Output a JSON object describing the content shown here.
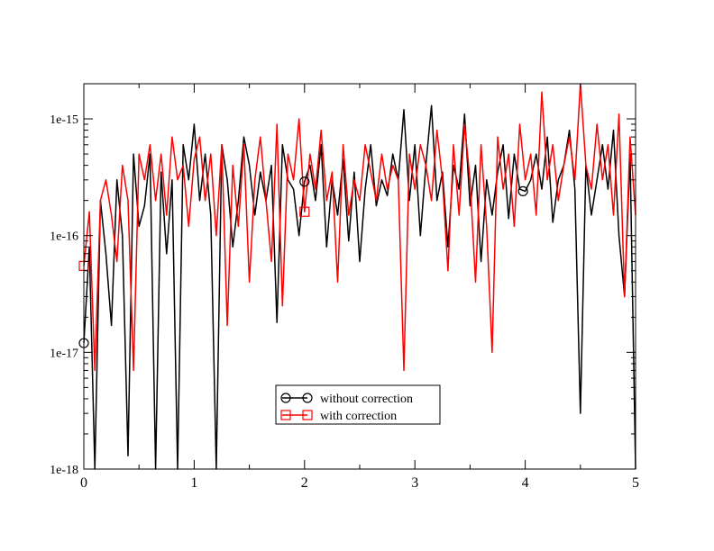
{
  "chart_data": {
    "type": "line",
    "title": "",
    "xlabel": "",
    "ylabel": "",
    "xlim": [
      0,
      5
    ],
    "ylim": [
      1e-18,
      2e-15
    ],
    "yscale": "log",
    "grid": false,
    "legend_position": "center-bottom",
    "x_ticks": [
      0,
      1,
      2,
      3,
      4,
      5
    ],
    "x_tick_labels": [
      "0",
      "1",
      "2",
      "3",
      "4",
      "5"
    ],
    "y_ticks": [
      1e-18,
      1e-17,
      1e-16,
      1e-15
    ],
    "y_tick_labels": [
      "1e-18",
      "1e-17",
      "1e-16",
      "1e-15"
    ],
    "series": [
      {
        "name": "without correction",
        "color": "#000000",
        "marker": "circle",
        "marker_x": [
          0.0,
          2.0,
          3.98
        ],
        "x": [
          0.0,
          0.05,
          0.1,
          0.15,
          0.2,
          0.25,
          0.3,
          0.35,
          0.4,
          0.45,
          0.5,
          0.55,
          0.6,
          0.65,
          0.7,
          0.75,
          0.8,
          0.85,
          0.9,
          0.95,
          1.0,
          1.05,
          1.1,
          1.15,
          1.2,
          1.25,
          1.3,
          1.35,
          1.4,
          1.45,
          1.5,
          1.55,
          1.6,
          1.65,
          1.7,
          1.75,
          1.8,
          1.85,
          1.9,
          1.95,
          2.0,
          2.05,
          2.1,
          2.15,
          2.2,
          2.25,
          2.3,
          2.35,
          2.4,
          2.45,
          2.5,
          2.55,
          2.6,
          2.65,
          2.7,
          2.75,
          2.8,
          2.85,
          2.9,
          2.95,
          3.0,
          3.05,
          3.1,
          3.15,
          3.2,
          3.25,
          3.3,
          3.35,
          3.4,
          3.45,
          3.5,
          3.55,
          3.6,
          3.65,
          3.7,
          3.75,
          3.8,
          3.85,
          3.9,
          3.95,
          4.0,
          4.05,
          4.1,
          4.15,
          4.2,
          4.25,
          4.3,
          4.35,
          4.4,
          4.45,
          4.5,
          4.55,
          4.6,
          4.65,
          4.7,
          4.75,
          4.8,
          4.85,
          4.9,
          4.95,
          5.0
        ],
        "y": [
          1.2e-17,
          8e-17,
          1e-18,
          2e-16,
          7e-17,
          1.7e-17,
          3e-16,
          1e-16,
          1.3e-18,
          5e-16,
          1.2e-16,
          1.8e-16,
          5e-16,
          1e-18,
          3.5e-16,
          7e-17,
          3e-16,
          1e-18,
          6e-16,
          3e-16,
          9e-16,
          2e-16,
          5e-16,
          1.5e-16,
          1e-18,
          6e-16,
          3e-16,
          8e-17,
          2e-16,
          7e-16,
          4e-16,
          1.5e-16,
          3.5e-16,
          2e-16,
          4e-16,
          1.8e-17,
          6e-16,
          3e-16,
          2.5e-16,
          1e-16,
          2.9e-16,
          4e-16,
          2e-16,
          6e-16,
          8e-17,
          3e-16,
          1.5e-16,
          4.5e-16,
          9e-17,
          3.5e-16,
          6e-17,
          2.5e-16,
          6e-16,
          1.8e-16,
          3e-16,
          2.2e-16,
          5e-16,
          3e-16,
          1.2e-15,
          2e-16,
          6e-16,
          1e-16,
          4e-16,
          1.3e-15,
          2e-16,
          3.5e-16,
          8e-17,
          4e-16,
          2.5e-16,
          1.1e-15,
          1.8e-16,
          4e-16,
          6e-17,
          3e-16,
          1.5e-16,
          3.5e-16,
          6e-16,
          1.4e-16,
          5e-16,
          2.5e-16,
          2.4e-16,
          3e-16,
          5e-16,
          2.5e-16,
          7e-16,
          1.3e-16,
          3e-16,
          4e-16,
          8e-16,
          2.5e-16,
          3e-18,
          4e-16,
          1.5e-16,
          3e-16,
          6e-16,
          2.5e-16,
          8e-16,
          1e-16,
          3e-17,
          5e-16,
          1e-18
        ]
      },
      {
        "name": "with correction",
        "color": "#ff0000",
        "marker": "square",
        "marker_x": [
          0.0,
          2.0
        ],
        "x": [
          0.0,
          0.05,
          0.1,
          0.15,
          0.2,
          0.25,
          0.3,
          0.35,
          0.4,
          0.45,
          0.5,
          0.55,
          0.6,
          0.65,
          0.7,
          0.75,
          0.8,
          0.85,
          0.9,
          0.95,
          1.0,
          1.05,
          1.1,
          1.15,
          1.2,
          1.25,
          1.3,
          1.35,
          1.4,
          1.45,
          1.5,
          1.55,
          1.6,
          1.65,
          1.7,
          1.75,
          1.8,
          1.85,
          1.9,
          1.95,
          2.0,
          2.05,
          2.1,
          2.15,
          2.2,
          2.25,
          2.3,
          2.35,
          2.4,
          2.45,
          2.5,
          2.55,
          2.6,
          2.65,
          2.7,
          2.75,
          2.8,
          2.85,
          2.9,
          2.95,
          3.0,
          3.05,
          3.1,
          3.15,
          3.2,
          3.25,
          3.3,
          3.35,
          3.4,
          3.45,
          3.5,
          3.55,
          3.6,
          3.65,
          3.7,
          3.75,
          3.8,
          3.85,
          3.9,
          3.95,
          4.0,
          4.05,
          4.1,
          4.15,
          4.2,
          4.25,
          4.3,
          4.35,
          4.4,
          4.45,
          4.5,
          4.55,
          4.6,
          4.65,
          4.7,
          4.75,
          4.8,
          4.85,
          4.9,
          4.95,
          5.0
        ],
        "y": [
          5.5e-17,
          1.6e-16,
          7e-18,
          2e-16,
          3e-16,
          1.5e-16,
          6e-17,
          4e-16,
          2e-16,
          7e-18,
          5e-16,
          3e-16,
          6e-16,
          2e-16,
          5e-16,
          1.5e-16,
          7e-16,
          3e-16,
          4e-16,
          1.2e-16,
          4.5e-16,
          7e-16,
          2e-16,
          5e-16,
          1e-16,
          6e-16,
          1.7e-17,
          4e-16,
          1.2e-16,
          6e-16,
          4e-17,
          3e-16,
          7e-16,
          2e-16,
          6e-17,
          9e-16,
          2.5e-17,
          5e-16,
          3e-16,
          1e-15,
          1.6e-16,
          5e-16,
          2.5e-16,
          8e-16,
          2e-16,
          3.5e-16,
          4e-17,
          6e-16,
          1.5e-16,
          3e-16,
          2e-16,
          6e-16,
          3.5e-16,
          2e-16,
          5e-16,
          2.5e-16,
          4e-16,
          3e-16,
          7e-18,
          5e-16,
          2.5e-16,
          6e-16,
          4e-16,
          2e-16,
          8e-16,
          3e-16,
          5e-17,
          6e-16,
          1.5e-16,
          9e-16,
          3e-16,
          4e-17,
          6e-16,
          1.2e-16,
          1e-17,
          7e-16,
          2.5e-16,
          5e-16,
          1.2e-16,
          9e-16,
          3e-16,
          5e-16,
          1.5e-16,
          1.7e-15,
          3e-16,
          6e-16,
          2e-16,
          4e-16,
          7e-16,
          3e-16,
          2e-15,
          4e-16,
          2.5e-16,
          9e-16,
          3e-16,
          6e-16,
          1.5e-16,
          1.1e-15,
          3e-17,
          7e-16,
          1.5e-16
        ]
      }
    ]
  }
}
